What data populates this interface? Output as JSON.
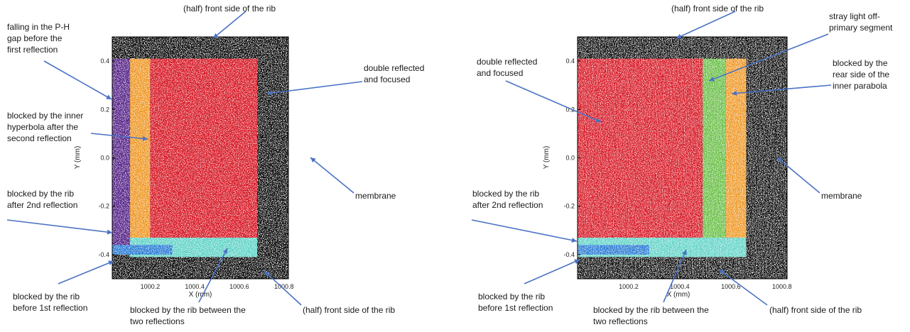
{
  "colors": {
    "membrane": "#111111",
    "speckle": "#ffffff",
    "double_reflected": "#d8202c",
    "gap": "#5b2a8c",
    "inner_hyperbola": "#ef9a2a",
    "rib_between": "#64d4c8",
    "rib_after_2nd": "#2f7fd6",
    "stray": "#6cc04a",
    "rear_parabola": "#ef9a2a",
    "arrow": "#4a72c4"
  },
  "chart_data": [
    {
      "type": "scatter",
      "panel": "left",
      "xlabel": "X (mm)",
      "ylabel": "Y (mm)",
      "xlim": [
        1000.03,
        1000.82
      ],
      "ylim": [
        -0.5,
        0.5
      ],
      "x_ticks": [
        1000.2,
        1000.4,
        1000.6,
        1000.8
      ],
      "x_tick_labels": [
        "1000.2",
        "1000.4",
        "1000.6",
        "1000.8"
      ],
      "y_ticks": [
        0.4,
        0.2,
        0.0,
        -0.2,
        -0.4
      ],
      "y_tick_labels": [
        "0.4",
        "0.2",
        "0.0",
        "-0.2",
        "-0.4"
      ],
      "regions": [
        {
          "key": "membrane",
          "x": [
            1000.03,
            1000.82
          ],
          "y": [
            -0.5,
            0.5
          ],
          "color": "#111111"
        },
        {
          "key": "gap",
          "x": [
            1000.03,
            1000.11
          ],
          "y": [
            -0.38,
            0.41
          ],
          "color": "#5b2a8c"
        },
        {
          "key": "inner_hyperbola",
          "x": [
            1000.11,
            1000.2
          ],
          "y": [
            -0.33,
            0.41
          ],
          "color": "#ef9a2a"
        },
        {
          "key": "double_reflected",
          "x": [
            1000.2,
            1000.68
          ],
          "y": [
            -0.33,
            0.41
          ],
          "color": "#d8202c"
        },
        {
          "key": "rib_between",
          "x": [
            1000.11,
            1000.68
          ],
          "y": [
            -0.41,
            -0.33
          ],
          "color": "#64d4c8"
        },
        {
          "key": "rib_after_2nd",
          "x": [
            1000.03,
            1000.3
          ],
          "y": [
            -0.4,
            -0.36
          ],
          "color": "#2f7fd6"
        }
      ],
      "annotations": [
        {
          "text": [
            "(half) front side of the rib"
          ]
        },
        {
          "text": [
            "falling in the P-H",
            "gap before the",
            "first reflection"
          ]
        },
        {
          "text": [
            "double reflected",
            "and focused"
          ]
        },
        {
          "text": [
            "blocked by the inner",
            "hyperbola after the",
            "second reflection"
          ]
        },
        {
          "text": [
            "membrane"
          ]
        },
        {
          "text": [
            "blocked by the rib",
            "after 2nd reflection"
          ]
        },
        {
          "text": [
            "blocked by the rib",
            "before 1st reflection"
          ]
        },
        {
          "text": [
            "blocked by the rib between the",
            "two reflections"
          ]
        },
        {
          "text": [
            "(half) front side of the rib"
          ]
        }
      ]
    },
    {
      "type": "scatter",
      "panel": "right",
      "xlabel": "X (mm)",
      "ylabel": "Y (mm)",
      "xlim": [
        1000.0,
        1000.82
      ],
      "ylim": [
        -0.5,
        0.5
      ],
      "x_ticks": [
        1000.2,
        1000.4,
        1000.6,
        1000.8
      ],
      "x_tick_labels": [
        "1000.2",
        "1000.4",
        "1000.6",
        "1000.8"
      ],
      "y_ticks": [
        0.4,
        0.2,
        0.0,
        -0.2,
        -0.4
      ],
      "y_tick_labels": [
        "0.4",
        "0.2",
        "0.0",
        "-0.2",
        "-0.4"
      ],
      "regions": [
        {
          "key": "membrane",
          "x": [
            1000.0,
            1000.82
          ],
          "y": [
            -0.5,
            0.5
          ],
          "color": "#111111"
        },
        {
          "key": "double_reflected",
          "x": [
            1000.0,
            1000.49
          ],
          "y": [
            -0.33,
            0.41
          ],
          "color": "#d8202c"
        },
        {
          "key": "stray",
          "x": [
            1000.49,
            1000.58
          ],
          "y": [
            -0.33,
            0.41
          ],
          "color": "#6cc04a"
        },
        {
          "key": "rear_parabola",
          "x": [
            1000.58,
            1000.66
          ],
          "y": [
            -0.41,
            0.41
          ],
          "color": "#ef9a2a"
        },
        {
          "key": "rib_between",
          "x": [
            1000.0,
            1000.66
          ],
          "y": [
            -0.41,
            -0.33
          ],
          "color": "#64d4c8"
        },
        {
          "key": "rib_after_2nd",
          "x": [
            1000.0,
            1000.28
          ],
          "y": [
            -0.4,
            -0.36
          ],
          "color": "#2f7fd6"
        }
      ],
      "annotations": [
        {
          "text": [
            "(half) front side of the rib"
          ]
        },
        {
          "text": [
            "stray light off-",
            "primary segment"
          ]
        },
        {
          "text": [
            "double reflected",
            "and focused"
          ]
        },
        {
          "text": [
            "blocked by the",
            "rear side of the",
            "inner parabola"
          ]
        },
        {
          "text": [
            "membrane"
          ]
        },
        {
          "text": [
            "blocked by the rib",
            "after 2nd reflection"
          ]
        },
        {
          "text": [
            "blocked by the rib",
            "before 1st reflection"
          ]
        },
        {
          "text": [
            "blocked by the rib between the",
            "two reflections"
          ]
        },
        {
          "text": [
            "(half) front side of the rib"
          ]
        }
      ]
    }
  ]
}
